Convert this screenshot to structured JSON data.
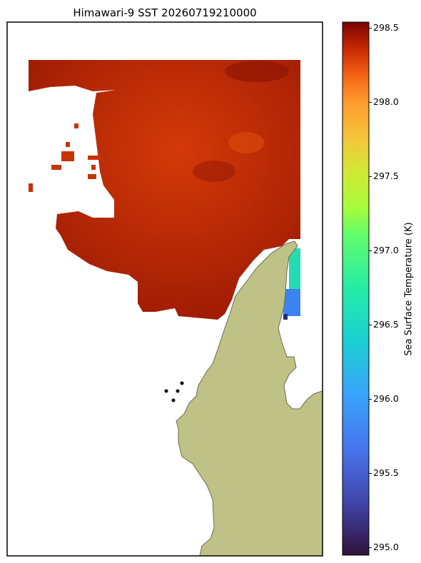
{
  "title": "Himawari-9 SST 20260719210000",
  "colorbar": {
    "label": "Sea Surface Temperature (K)",
    "clim": [
      294.95,
      298.54
    ],
    "ticks": [
      298.5,
      {
        "value": 298.0,
        "label": "298.0"
      },
      297.5,
      {
        "value": 297.0,
        "label": "297.0"
      },
      296.5,
      {
        "value": 296.0,
        "label": "296.0"
      },
      295.5,
      {
        "value": 295.0,
        "label": "295.0"
      }
    ]
  }
}
